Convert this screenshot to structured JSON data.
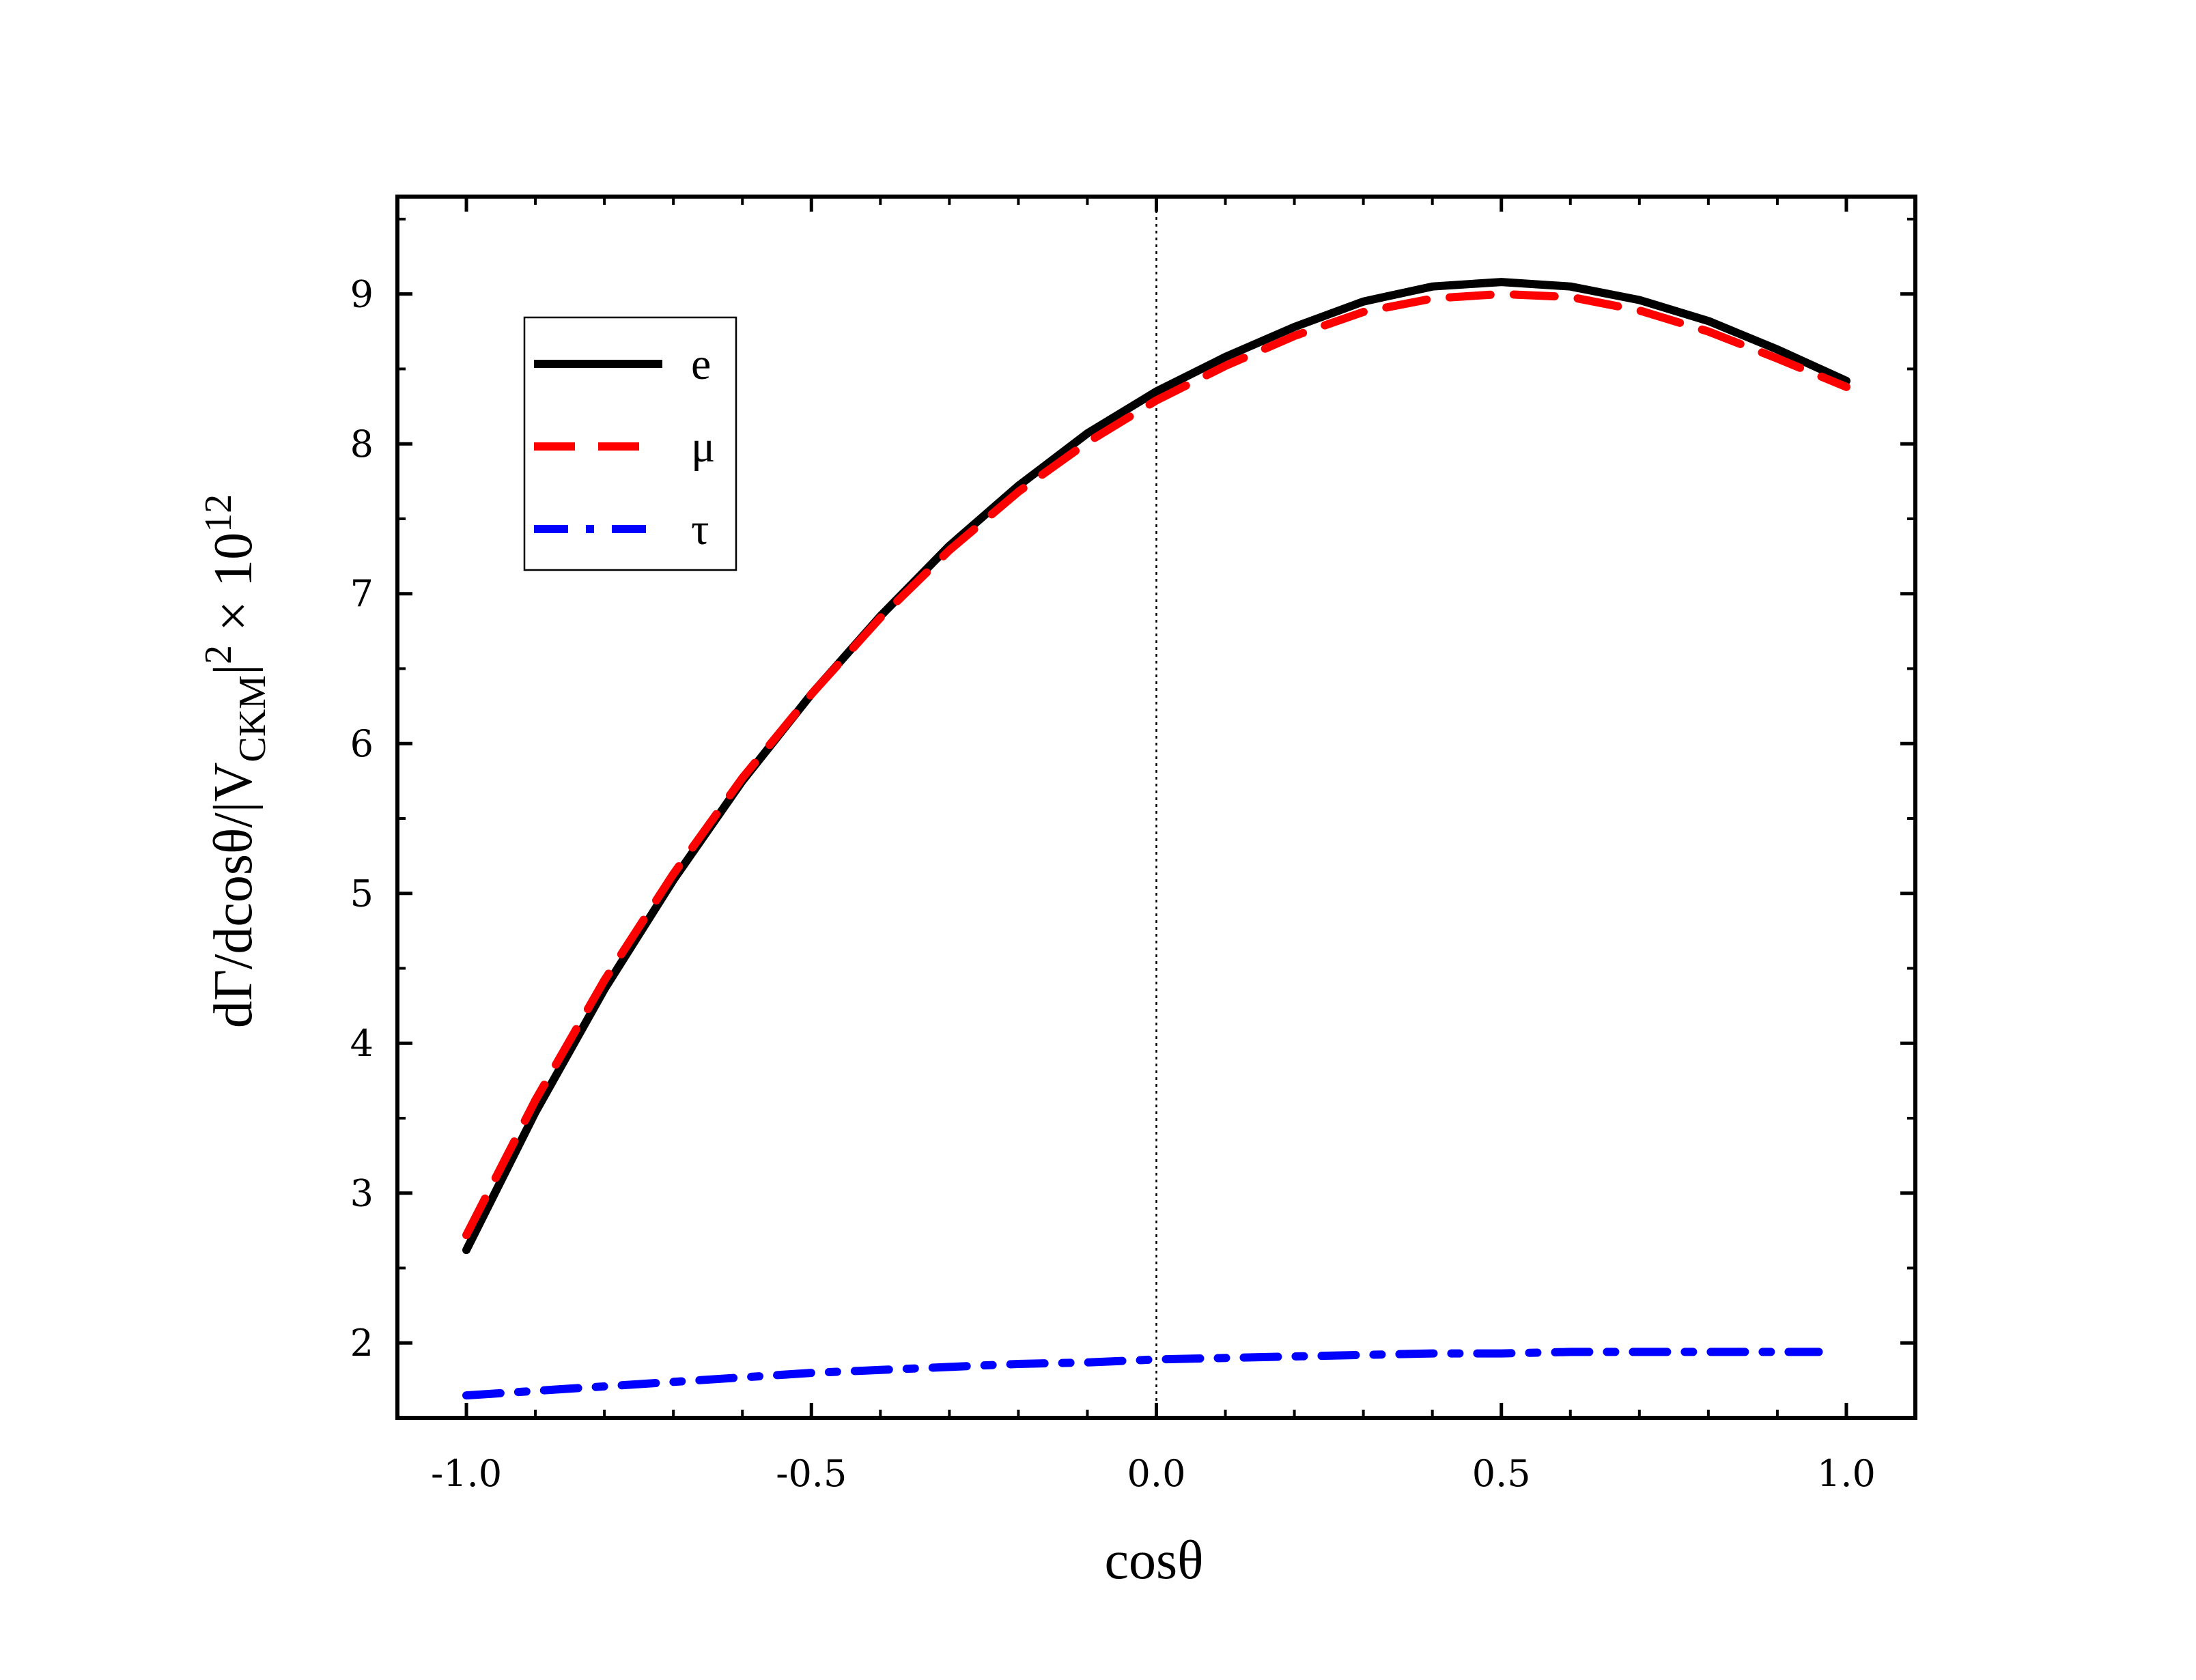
{
  "chart_data": {
    "type": "line",
    "xlabel": "cosθ",
    "ylabel": {
      "main": "dΓ/dcosθ/|V",
      "sub": "CKM",
      "tail": "|",
      "sup": "2",
      "times": " × 10",
      "sup2": "12"
    },
    "xlim": [
      -1.1,
      1.1
    ],
    "ylim": [
      1.5,
      9.65
    ],
    "x_ticks": [
      -1.0,
      -0.5,
      0.0,
      0.5,
      1.0
    ],
    "x_tick_labels": [
      "-1.0",
      "-0.5",
      "0.0",
      "0.5",
      "1.0"
    ],
    "y_ticks": [
      2,
      3,
      4,
      5,
      6,
      7,
      8,
      9
    ],
    "y_tick_labels": [
      "2",
      "3",
      "4",
      "5",
      "6",
      "7",
      "8",
      "9"
    ],
    "reference_line": {
      "x": 0.0,
      "style": "dotted"
    },
    "legend": {
      "placement": "top-left"
    },
    "series": [
      {
        "name": "e",
        "color": "#000000",
        "style": "solid",
        "x": [
          -1.0,
          -0.9,
          -0.8,
          -0.7,
          -0.6,
          -0.5,
          -0.4,
          -0.3,
          -0.2,
          -0.1,
          0.0,
          0.1,
          0.2,
          0.3,
          0.4,
          0.5,
          0.6,
          0.7,
          0.8,
          0.9,
          1.0
        ],
        "y": [
          2.62,
          3.54,
          4.36,
          5.09,
          5.75,
          6.33,
          6.85,
          7.32,
          7.72,
          8.07,
          8.35,
          8.58,
          8.78,
          8.95,
          9.05,
          9.08,
          9.05,
          8.96,
          8.82,
          8.63,
          8.42
        ]
      },
      {
        "name": "μ",
        "color": "#ff0000",
        "style": "dashed",
        "x": [
          -1.0,
          -0.9,
          -0.8,
          -0.7,
          -0.6,
          -0.5,
          -0.4,
          -0.3,
          -0.2,
          -0.1,
          0.0,
          0.1,
          0.2,
          0.3,
          0.4,
          0.5,
          0.6,
          0.7,
          0.8,
          0.9,
          1.0
        ],
        "y": [
          2.72,
          3.62,
          4.42,
          5.13,
          5.77,
          6.33,
          6.84,
          7.29,
          7.68,
          8.01,
          8.29,
          8.52,
          8.72,
          8.88,
          8.97,
          9.0,
          8.98,
          8.89,
          8.75,
          8.57,
          8.38
        ]
      },
      {
        "name": "τ",
        "color": "#0000ff",
        "style": "dashdot",
        "x": [
          -1.0,
          -0.9,
          -0.8,
          -0.7,
          -0.6,
          -0.5,
          -0.4,
          -0.3,
          -0.2,
          -0.1,
          0.0,
          0.1,
          0.2,
          0.3,
          0.4,
          0.5,
          0.6,
          0.7,
          0.8,
          0.9,
          0.96
        ],
        "y": [
          1.65,
          1.68,
          1.71,
          1.74,
          1.77,
          1.8,
          1.82,
          1.84,
          1.86,
          1.87,
          1.89,
          1.9,
          1.91,
          1.92,
          1.93,
          1.93,
          1.94,
          1.94,
          1.94,
          1.94,
          1.94
        ]
      }
    ]
  }
}
